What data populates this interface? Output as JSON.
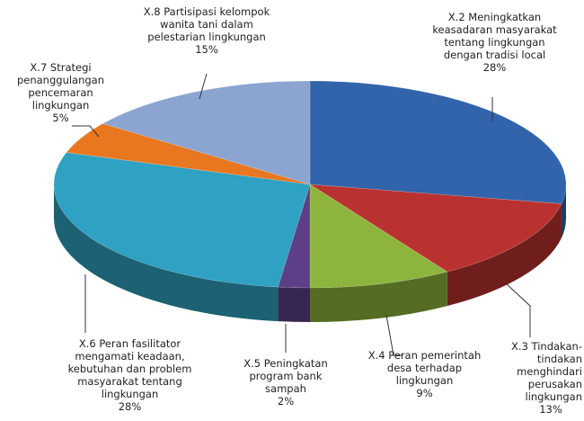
{
  "chart_data": {
    "type": "pie",
    "categories": [
      "X.2  Meningkatkan keasadaran masyarakat tentang lingkungan dengan tradisi local",
      "X.3 Tindakan-tindakan menghindari perusakan lingkungan",
      "X.4 Peran pemerintah desa terhadap lingkungan",
      "X.5 Peningkatan program bank sampah",
      "X.6 Peran fasilitator mengamati keadaan, kebutuhan dan problem masyarakat tentang lingkungan",
      "X.7  Strategi penanggulangan pencemaran lingkungan",
      "X.8 Partisipasi kelompok wanita tani dalam pelestarian lingkungan"
    ],
    "values": [
      28,
      13,
      9,
      2,
      28,
      5,
      15
    ],
    "value_labels": [
      "28%",
      "13%",
      "9%",
      "2%",
      "28%",
      "5%",
      "15%"
    ],
    "colors": [
      "#3164ab",
      "#b9322f",
      "#8db43c",
      "#5d3f88",
      "#2fa1c2",
      "#e8771f",
      "#8ba5d0"
    ]
  }
}
